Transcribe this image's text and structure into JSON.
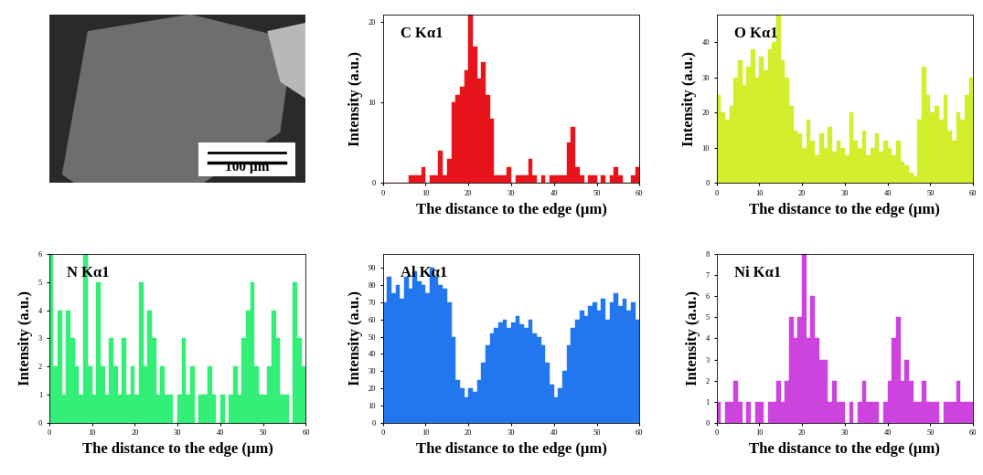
{
  "image": {
    "scale_bar": "100 µm"
  },
  "chart_data": [
    {
      "type": "bar",
      "title": "C Kα1",
      "x_label": "The distance to the edge (μm)",
      "y_label": "Intensity (a.u.)",
      "color": "#e8141c",
      "x": [
        0,
        1,
        2,
        3,
        4,
        5,
        6,
        7,
        8,
        9,
        10,
        11,
        12,
        13,
        14,
        15,
        16,
        17,
        18,
        19,
        20,
        21,
        22,
        23,
        24,
        25,
        26,
        27,
        28,
        29,
        30,
        31,
        32,
        33,
        34,
        35,
        36,
        37,
        38,
        39,
        40,
        41,
        42,
        43,
        44,
        45,
        46,
        47,
        48,
        49,
        50,
        51,
        52,
        53,
        54,
        55,
        56,
        57,
        58,
        59
      ],
      "values": [
        0,
        0,
        0,
        0,
        0,
        0,
        1,
        1,
        1,
        2,
        0,
        1,
        1,
        4,
        1,
        3,
        10,
        11,
        12,
        14,
        21,
        17,
        13,
        15,
        11,
        8,
        1,
        1,
        1,
        2,
        0,
        1,
        1,
        1,
        3,
        1,
        0,
        1,
        0,
        1,
        1,
        1,
        1,
        5,
        7,
        2,
        1,
        0,
        1,
        1,
        0,
        1,
        0,
        1,
        2,
        1,
        0,
        0,
        1,
        2
      ],
      "xlim": [
        0,
        60
      ],
      "xticks": [
        0,
        10,
        20,
        30,
        40,
        50,
        60
      ],
      "ylim": [
        0,
        21
      ],
      "yticks": [
        0,
        10,
        20
      ]
    },
    {
      "type": "bar",
      "title": "O Kα1",
      "x_label": "The distance to the edge (μm)",
      "y_label": "Intensity (a.u.)",
      "color": "#d2ee2c",
      "x": [
        0,
        1,
        2,
        3,
        4,
        5,
        6,
        7,
        8,
        9,
        10,
        11,
        12,
        13,
        14,
        15,
        16,
        17,
        18,
        19,
        20,
        21,
        22,
        23,
        24,
        25,
        26,
        27,
        28,
        29,
        30,
        31,
        32,
        33,
        34,
        35,
        36,
        37,
        38,
        39,
        40,
        41,
        42,
        43,
        44,
        45,
        46,
        47,
        48,
        49,
        50,
        51,
        52,
        53,
        54,
        55,
        56,
        57,
        58,
        59
      ],
      "values": [
        25,
        20,
        18,
        22,
        30,
        35,
        28,
        33,
        38,
        30,
        36,
        32,
        38,
        40,
        48,
        35,
        30,
        22,
        15,
        14,
        10,
        18,
        12,
        8,
        14,
        10,
        16,
        9,
        12,
        10,
        8,
        20,
        12,
        10,
        15,
        8,
        10,
        14,
        9,
        12,
        10,
        8,
        12,
        6,
        5,
        3,
        2,
        18,
        33,
        25,
        20,
        22,
        18,
        25,
        15,
        12,
        20,
        18,
        25,
        30
      ],
      "xlim": [
        0,
        60
      ],
      "xticks": [
        0,
        10,
        20,
        30,
        40,
        50,
        60
      ],
      "ylim": [
        0,
        48
      ],
      "yticks": [
        0,
        10,
        20,
        30,
        40
      ]
    },
    {
      "type": "bar",
      "title": "N Kα1",
      "x_label": "The distance to the edge (μm)",
      "y_label": "Intensity (a.u.)",
      "color": "#33ee77",
      "x": [
        0,
        1,
        2,
        3,
        4,
        5,
        6,
        7,
        8,
        9,
        10,
        11,
        12,
        13,
        14,
        15,
        16,
        17,
        18,
        19,
        20,
        21,
        22,
        23,
        24,
        25,
        26,
        27,
        28,
        29,
        30,
        31,
        32,
        33,
        34,
        35,
        36,
        37,
        38,
        39,
        40,
        41,
        42,
        43,
        44,
        45,
        46,
        47,
        48,
        49,
        50,
        51,
        52,
        53,
        54,
        55,
        56,
        57,
        58,
        59
      ],
      "values": [
        6,
        2,
        4,
        1,
        4,
        3,
        2,
        1,
        6,
        2,
        1,
        5,
        2,
        1,
        3,
        2,
        1,
        3,
        1,
        2,
        1,
        5,
        2,
        4,
        3,
        1,
        2,
        1,
        1,
        0,
        1,
        3,
        1,
        2,
        0,
        1,
        1,
        2,
        1,
        0,
        1,
        0,
        1,
        2,
        1,
        3,
        4,
        5,
        2,
        1,
        1,
        2,
        4,
        3,
        1,
        1,
        0,
        5,
        3,
        2
      ],
      "xlim": [
        0,
        60
      ],
      "xticks": [
        0,
        10,
        20,
        30,
        40,
        50,
        60
      ],
      "ylim": [
        0,
        6
      ],
      "yticks": [
        0,
        1,
        2,
        3,
        4,
        5,
        6
      ]
    },
    {
      "type": "bar",
      "title": "Al Kα1",
      "x_label": "The distance to the edge (μm)",
      "y_label": "Intensity (a.u.)",
      "color": "#2277ee",
      "x": [
        0,
        1,
        2,
        3,
        4,
        5,
        6,
        7,
        8,
        9,
        10,
        11,
        12,
        13,
        14,
        15,
        16,
        17,
        18,
        19,
        20,
        21,
        22,
        23,
        24,
        25,
        26,
        27,
        28,
        29,
        30,
        31,
        32,
        33,
        34,
        35,
        36,
        37,
        38,
        39,
        40,
        41,
        42,
        43,
        44,
        45,
        46,
        47,
        48,
        49,
        50,
        51,
        52,
        53,
        54,
        55,
        56,
        57,
        58,
        59
      ],
      "values": [
        70,
        85,
        75,
        80,
        72,
        85,
        78,
        88,
        82,
        80,
        75,
        90,
        85,
        80,
        78,
        70,
        50,
        25,
        20,
        15,
        20,
        18,
        25,
        35,
        45,
        52,
        55,
        58,
        60,
        55,
        58,
        62,
        57,
        55,
        60,
        52,
        50,
        45,
        35,
        22,
        15,
        20,
        30,
        45,
        55,
        60,
        65,
        62,
        68,
        70,
        65,
        72,
        60,
        70,
        75,
        68,
        72,
        65,
        70,
        60
      ],
      "xlim": [
        0,
        60
      ],
      "xticks": [
        0,
        10,
        20,
        30,
        40,
        50,
        60
      ],
      "ylim": [
        0,
        98
      ],
      "yticks": [
        0,
        10,
        20,
        30,
        40,
        50,
        60,
        70,
        80,
        90
      ]
    },
    {
      "type": "bar",
      "title": "Ni Kα1",
      "x_label": "The distance to the edge (μm)",
      "y_label": "Intensity (a.u.)",
      "color": "#cc44dd",
      "x": [
        0,
        1,
        2,
        3,
        4,
        5,
        6,
        7,
        8,
        9,
        10,
        11,
        12,
        13,
        14,
        15,
        16,
        17,
        18,
        19,
        20,
        21,
        22,
        23,
        24,
        25,
        26,
        27,
        28,
        29,
        30,
        31,
        32,
        33,
        34,
        35,
        36,
        37,
        38,
        39,
        40,
        41,
        42,
        43,
        44,
        45,
        46,
        47,
        48,
        49,
        50,
        51,
        52,
        53,
        54,
        55,
        56,
        57,
        58,
        59
      ],
      "values": [
        1,
        0,
        1,
        1,
        2,
        1,
        0,
        1,
        0,
        1,
        1,
        0,
        1,
        1,
        2,
        1,
        2,
        5,
        4,
        5,
        8,
        4,
        6,
        4,
        3,
        3,
        1,
        2,
        1,
        1,
        0,
        1,
        0,
        1,
        2,
        1,
        1,
        1,
        0,
        1,
        2,
        4,
        5,
        2,
        3,
        2,
        1,
        1,
        2,
        1,
        1,
        1,
        0,
        1,
        1,
        1,
        2,
        1,
        1,
        1
      ],
      "xlim": [
        0,
        60
      ],
      "xticks": [
        0,
        10,
        20,
        30,
        40,
        50,
        60
      ],
      "ylim": [
        0,
        8
      ],
      "yticks": [
        0,
        1,
        2,
        3,
        4,
        5,
        6,
        7,
        8
      ]
    }
  ]
}
